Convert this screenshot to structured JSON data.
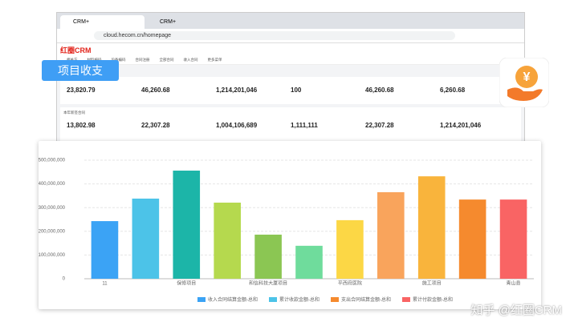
{
  "browser": {
    "tabs": [
      "CRM+",
      "CRM+"
    ],
    "url": "cloud.hecom.cn/homepage"
  },
  "app": {
    "logo": "红圈CRM",
    "nav": [
      "相关方",
      "材料编码",
      "设备编码",
      "合同注册",
      "全部合同",
      "收入合同",
      "更多菜单"
    ]
  },
  "badge": "项目收支",
  "stats": {
    "row1": [
      "23,820.79",
      "46,260.68",
      "1,214,201,046",
      "100",
      "46,260.68",
      "6,260.68"
    ],
    "section2": "本年新签合同",
    "row2": [
      "13,802.98",
      "22,307.28",
      "1,004,106,689",
      "1,111,111",
      "22,307.28",
      "1,214,201,046"
    ]
  },
  "watermark": "知乎 @红圈CRM",
  "chart_data": {
    "type": "bar",
    "categories": [
      "11",
      null,
      "保修项目",
      null,
      "和信科技大厦项目",
      null,
      "平西府医院",
      null,
      "施工项目",
      null,
      "青山县"
    ],
    "values": [
      243000000,
      338000000,
      456000000,
      321000000,
      186000000,
      139000000,
      247000000,
      365000000,
      432000000,
      334000000,
      334000000
    ],
    "colors": [
      "#3ba3f5",
      "#4cc3e8",
      "#1cb5a8",
      "#b5d94e",
      "#8bc653",
      "#6fdc9c",
      "#fcd745",
      "#f9a45c",
      "#f9b43c",
      "#f58a2e",
      "#f96464"
    ],
    "ylim": [
      0,
      500000000
    ],
    "yticks": [
      0,
      {
        "value": 100000000,
        "label": "100,000,000"
      },
      {
        "value": 200000000,
        "label": "200,000,000"
      },
      {
        "value": 300000000,
        "label": "300,000,000"
      },
      {
        "value": 400000000,
        "label": "400,000,000"
      },
      {
        "value": 500000000,
        "label": "500,000,000"
      }
    ],
    "grid": true,
    "legend": [
      {
        "name": "收入合同结算金额-总和",
        "color": "#3ba3f5"
      },
      {
        "name": "累计收款金额-总和",
        "color": "#4cc3e8"
      },
      {
        "name": "支出合同结算金额-总和",
        "color": "#f58a2e"
      },
      {
        "name": "累计付款金额-总和",
        "color": "#f96464"
      }
    ]
  }
}
